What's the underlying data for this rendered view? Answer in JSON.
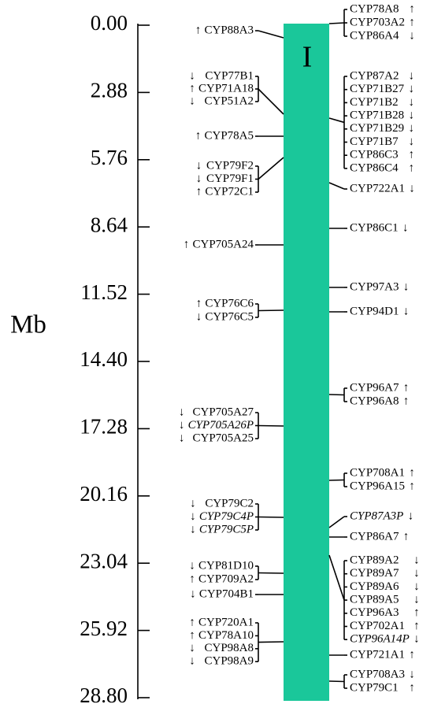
{
  "axis": {
    "label": "Mb",
    "ticks": [
      "0.00",
      "2.88",
      "5.76",
      "8.64",
      "11.52",
      "14.40",
      "17.28",
      "20.16",
      "23.04",
      "25.92",
      "28.80"
    ]
  },
  "chromosome": {
    "label": "I"
  },
  "left_groups": [
    {
      "genes": [
        {
          "name": "CYP88A3",
          "arrow": "↑"
        }
      ]
    },
    {
      "genes": [
        {
          "name": "CYP77B1",
          "arrow": "↓"
        },
        {
          "name": "CYP71A18",
          "arrow": "↑"
        },
        {
          "name": "CYP51A2",
          "arrow": "↓"
        }
      ]
    },
    {
      "genes": [
        {
          "name": "CYP78A5",
          "arrow": "↑"
        }
      ]
    },
    {
      "genes": [
        {
          "name": "CYP79F2",
          "arrow": "↓"
        },
        {
          "name": "CYP79F1",
          "arrow": "↓"
        },
        {
          "name": "CYP72C1",
          "arrow": "↑"
        }
      ]
    },
    {
      "genes": [
        {
          "name": "CYP705A24",
          "arrow": "↑"
        }
      ]
    },
    {
      "genes": [
        {
          "name": "CYP76C6",
          "arrow": "↑"
        },
        {
          "name": "CYP76C5",
          "arrow": "↓"
        }
      ]
    },
    {
      "genes": [
        {
          "name": "CYP705A27",
          "arrow": "↓"
        },
        {
          "name": "CYP705A26P",
          "arrow": "↓",
          "italic": true
        },
        {
          "name": "CYP705A25",
          "arrow": "↓"
        }
      ]
    },
    {
      "genes": [
        {
          "name": "CYP79C2",
          "arrow": "↓"
        },
        {
          "name": "CYP79C4P",
          "arrow": "↓",
          "italic": true
        },
        {
          "name": "CYP79C5P",
          "arrow": "↓",
          "italic": true
        }
      ]
    },
    {
      "genes": [
        {
          "name": "CYP81D10",
          "arrow": "↓"
        },
        {
          "name": "CYP709A2",
          "arrow": "↑"
        }
      ]
    },
    {
      "genes": [
        {
          "name": "CYP704B1",
          "arrow": "↓"
        }
      ]
    },
    {
      "genes": [
        {
          "name": "CYP720A1",
          "arrow": "↑"
        },
        {
          "name": "CYP78A10",
          "arrow": "↑"
        },
        {
          "name": "CYP98A8",
          "arrow": "↓"
        },
        {
          "name": "CYP98A9",
          "arrow": "↓"
        }
      ]
    }
  ],
  "right_groups": [
    {
      "genes": [
        {
          "name": "CYP78A8",
          "arrow": "↑"
        },
        {
          "name": "CYP703A2",
          "arrow": "↑"
        },
        {
          "name": "CYP86A4",
          "arrow": "↓"
        }
      ]
    },
    {
      "genes": [
        {
          "name": "CYP87A2",
          "arrow": "↓"
        },
        {
          "name": "CYP71B27",
          "arrow": "↓"
        },
        {
          "name": "CYP71B2",
          "arrow": "↓"
        },
        {
          "name": "CYP71B28",
          "arrow": "↓"
        },
        {
          "name": "CYP71B29",
          "arrow": "↓"
        },
        {
          "name": "CYP71B7",
          "arrow": "↓"
        },
        {
          "name": "CYP86C3",
          "arrow": "↑"
        },
        {
          "name": "CYP86C4",
          "arrow": "↑"
        }
      ]
    },
    {
      "genes": [
        {
          "name": "CYP722A1",
          "arrow": "↓"
        }
      ]
    },
    {
      "genes": [
        {
          "name": "CYP86C1",
          "arrow": "↓"
        }
      ]
    },
    {
      "genes": [
        {
          "name": "CYP97A3",
          "arrow": "↓"
        }
      ]
    },
    {
      "genes": [
        {
          "name": "CYP94D1",
          "arrow": "↓"
        }
      ]
    },
    {
      "genes": [
        {
          "name": "CYP96A7",
          "arrow": "↑"
        },
        {
          "name": "CYP96A8",
          "arrow": "↑"
        }
      ]
    },
    {
      "genes": [
        {
          "name": "CYP708A1",
          "arrow": "↑"
        },
        {
          "name": "CYP96A15",
          "arrow": "↑"
        }
      ]
    },
    {
      "genes": [
        {
          "name": "CYP87A3P",
          "arrow": "↓",
          "italic": true
        }
      ]
    },
    {
      "genes": [
        {
          "name": "CYP86A7",
          "arrow": "↑"
        }
      ]
    },
    {
      "genes": [
        {
          "name": "CYP89A2",
          "arrow": "↓"
        },
        {
          "name": "CYP89A7",
          "arrow": "↓"
        },
        {
          "name": "CYP89A6",
          "arrow": "↓"
        },
        {
          "name": "CYP89A5",
          "arrow": "↓"
        },
        {
          "name": "CYP96A3",
          "arrow": "↑"
        },
        {
          "name": "CYP702A1",
          "arrow": "↑"
        },
        {
          "name": "CYP96A14P",
          "arrow": "↓",
          "italic": true
        }
      ]
    },
    {
      "genes": [
        {
          "name": "CYP721A1",
          "arrow": "↑"
        }
      ]
    },
    {
      "genes": [
        {
          "name": "CYP708A3",
          "arrow": "↓"
        },
        {
          "name": "CYP79C1",
          "arrow": "↑"
        }
      ]
    }
  ]
}
